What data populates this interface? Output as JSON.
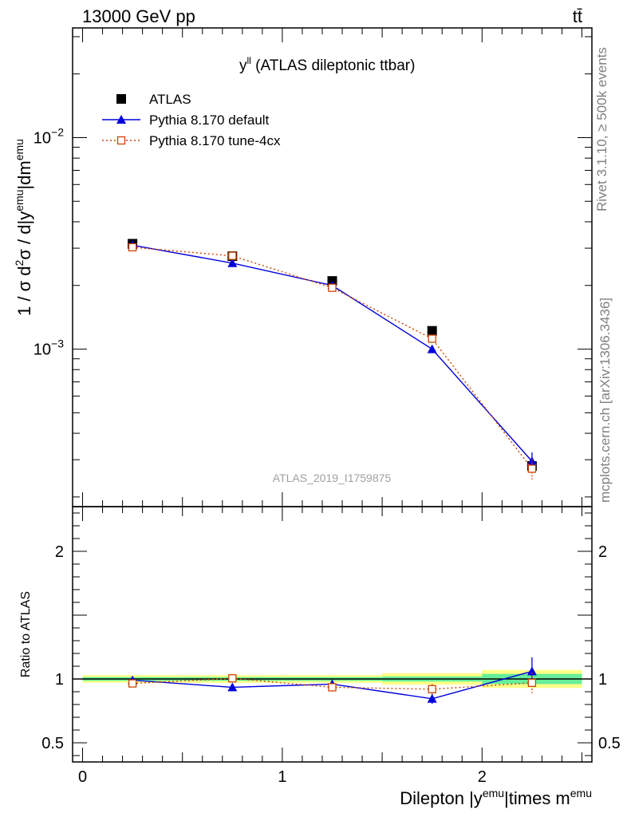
{
  "header": {
    "left": "13000 GeV pp",
    "right": "tt̄"
  },
  "side_text": {
    "top": "Rivet 3.1.10, ≥ 500k events",
    "bottom": "mcplots.cern.ch [arXiv:1306.3436]"
  },
  "colors": {
    "data": "#000000",
    "default": "#0000dd",
    "tune": "#cc4400",
    "band_inner": "#66ee99",
    "band_outer": "#ffff88"
  },
  "chart_data": [
    {
      "type": "scatter",
      "title_main": "y",
      "title_sup": "ll",
      "title_rest": " (ATLAS dileptonic ttbar)",
      "ylabel": "1 / σ  d²σ / d|y^emu|dm^emu",
      "ylabel_parts": [
        "1 / σ  d",
        "2",
        "σ / d|y",
        "emu",
        "|dm",
        "emu"
      ],
      "yscale": "log",
      "ylim": [
        0.00018,
        0.033
      ],
      "xlim": [
        -0.05,
        2.55
      ],
      "yticks": [
        {
          "value": 0.01,
          "base": "10",
          "exp": "−2"
        },
        {
          "value": 0.001,
          "base": "10",
          "exp": "−3"
        }
      ],
      "watermark": "ATLAS_2019_I1759875",
      "legend_position": "top-left",
      "legend": [
        {
          "label": "ATLAS"
        },
        {
          "label": "Pythia 8.170 default"
        },
        {
          "label": "Pythia 8.170 tune-4cx"
        }
      ],
      "x": [
        0.25,
        0.75,
        1.25,
        1.75,
        2.25
      ],
      "x_bins": [
        [
          0,
          0.5
        ],
        [
          0.5,
          1.0
        ],
        [
          1.0,
          1.5
        ],
        [
          1.5,
          2.0
        ],
        [
          2.0,
          2.5
        ]
      ],
      "series": [
        {
          "name": "ATLAS",
          "style": "square-filled",
          "values": [
            0.00315,
            0.00275,
            0.0021,
            0.00122,
            0.00028
          ],
          "err": [
            4e-05,
            4e-05,
            3e-05,
            3e-05,
            1e-05
          ]
        },
        {
          "name": "Pythia 8.170 default",
          "style": "triangle-line",
          "values": [
            0.0031,
            0.00255,
            0.002,
            0.001,
            0.000295
          ],
          "err": [
            4e-05,
            4e-05,
            3e-05,
            3e-05,
            3e-05
          ]
        },
        {
          "name": "Pythia 8.170 tune-4cx",
          "style": "open-square-dotted",
          "values": [
            0.00303,
            0.00276,
            0.00195,
            0.00112,
            0.000272
          ],
          "err": [
            4e-05,
            4e-05,
            3e-05,
            4e-05,
            3e-05
          ]
        }
      ]
    },
    {
      "type": "scatter",
      "ylabel": "Ratio to ATLAS",
      "xlabel": "Dilepton |y^emu|times m^emu",
      "xlabel_parts": [
        "Dilepton |y",
        "emu",
        "|times m",
        "emu"
      ],
      "ylim": [
        0.35,
        2.35
      ],
      "xlim": [
        -0.05,
        2.55
      ],
      "yticks": [
        0.5,
        1,
        2
      ],
      "xticks": [
        0,
        1,
        2
      ],
      "bands": [
        {
          "x0": 0.0,
          "x1": 0.5,
          "inner": [
            0.985,
            1.015
          ],
          "outer": [
            0.97,
            1.03
          ]
        },
        {
          "x0": 0.5,
          "x1": 1.0,
          "inner": [
            0.985,
            1.015
          ],
          "outer": [
            0.97,
            1.03
          ]
        },
        {
          "x0": 1.0,
          "x1": 1.5,
          "inner": [
            0.985,
            1.015
          ],
          "outer": [
            0.97,
            1.03
          ]
        },
        {
          "x0": 1.5,
          "x1": 2.0,
          "inner": [
            0.98,
            1.02
          ],
          "outer": [
            0.955,
            1.045
          ]
        },
        {
          "x0": 2.0,
          "x1": 2.5,
          "inner": [
            0.96,
            1.04
          ],
          "outer": [
            0.93,
            1.07
          ]
        }
      ],
      "series": [
        {
          "name": "Pythia 8.170 default",
          "style": "triangle-line",
          "values": [
            0.99,
            0.935,
            0.96,
            0.845,
            1.06
          ],
          "err": [
            0.025,
            0.025,
            0.025,
            0.04,
            0.11
          ]
        },
        {
          "name": "Pythia 8.170 tune-4cx",
          "style": "open-square-dotted",
          "values": [
            0.965,
            1.005,
            0.935,
            0.92,
            0.97
          ],
          "err": [
            0.02,
            0.02,
            0.02,
            0.04,
            0.08
          ]
        }
      ]
    }
  ]
}
